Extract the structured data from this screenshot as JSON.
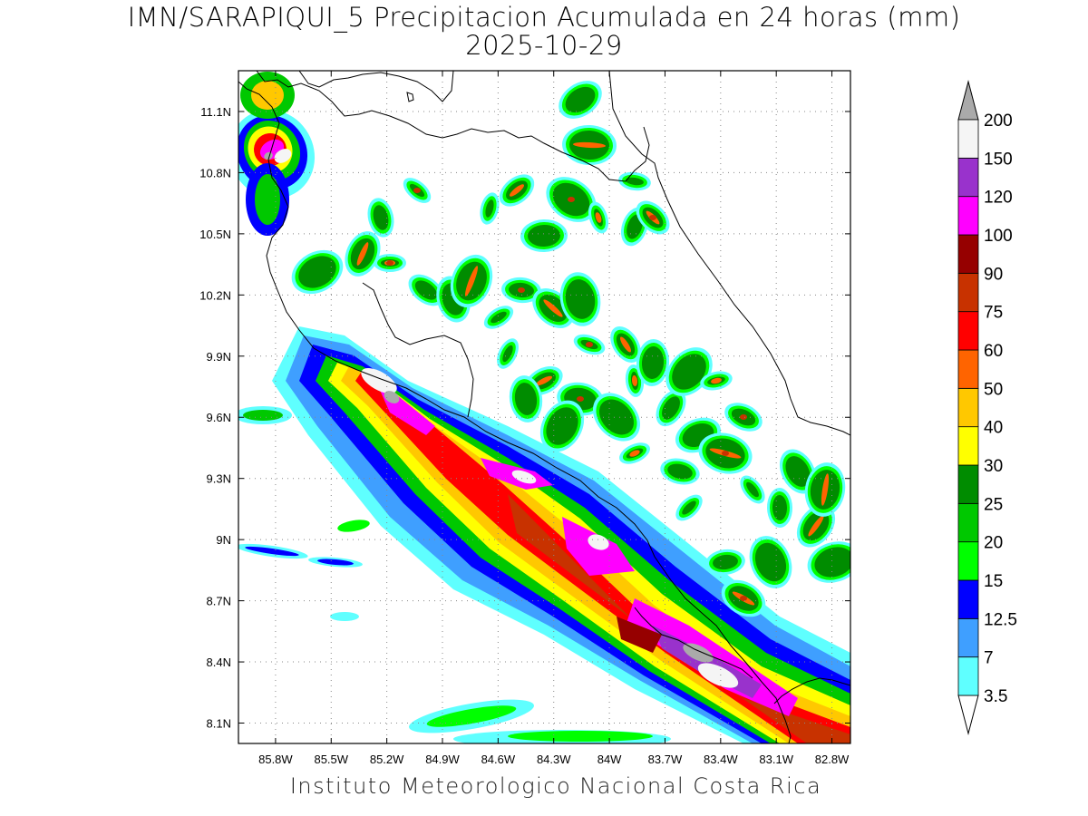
{
  "title_line1": "IMN/SARAPIQUI_5 Precipitacion Acumulada en 24 horas (mm)",
  "title_line2": "2025-10-29",
  "footer": "Instituto Meteorologico Nacional Costa Rica",
  "map": {
    "lon_range": [
      -86.0,
      -82.7
    ],
    "lat_range": [
      8.0,
      11.3
    ],
    "lon_ticks": [
      "85.8W",
      "85.5W",
      "85.2W",
      "84.9W",
      "84.6W",
      "84.3W",
      "84W",
      "83.7W",
      "83.4W",
      "83.1W",
      "82.8W"
    ],
    "lon_tick_values": [
      -85.8,
      -85.5,
      -85.2,
      -84.9,
      -84.6,
      -84.3,
      -84.0,
      -83.7,
      -83.4,
      -83.1,
      -82.8
    ],
    "lat_ticks": [
      "11.1N",
      "10.8N",
      "10.5N",
      "10.2N",
      "9.9N",
      "9.6N",
      "9.3N",
      "9N",
      "8.7N",
      "8.4N",
      "8.1N"
    ],
    "lat_tick_values": [
      11.1,
      10.8,
      10.5,
      10.2,
      9.9,
      9.6,
      9.3,
      9.0,
      8.7,
      8.4,
      8.1
    ],
    "grid": true
  },
  "colorbar": {
    "labels": [
      "3.5",
      "7",
      "12.5",
      "15",
      "20",
      "25",
      "30",
      "40",
      "50",
      "60",
      "75",
      "90",
      "100",
      "120",
      "150",
      "200"
    ],
    "colors": [
      "#ffffff",
      "#5fffff",
      "#3f9fff",
      "#0000ff",
      "#00ff00",
      "#00c800",
      "#008c00",
      "#ffff00",
      "#ffc800",
      "#ff6400",
      "#ff0000",
      "#c83200",
      "#960000",
      "#ff00ff",
      "#9932cc",
      "#f5f5f5",
      "#aaaaaa"
    ]
  }
}
